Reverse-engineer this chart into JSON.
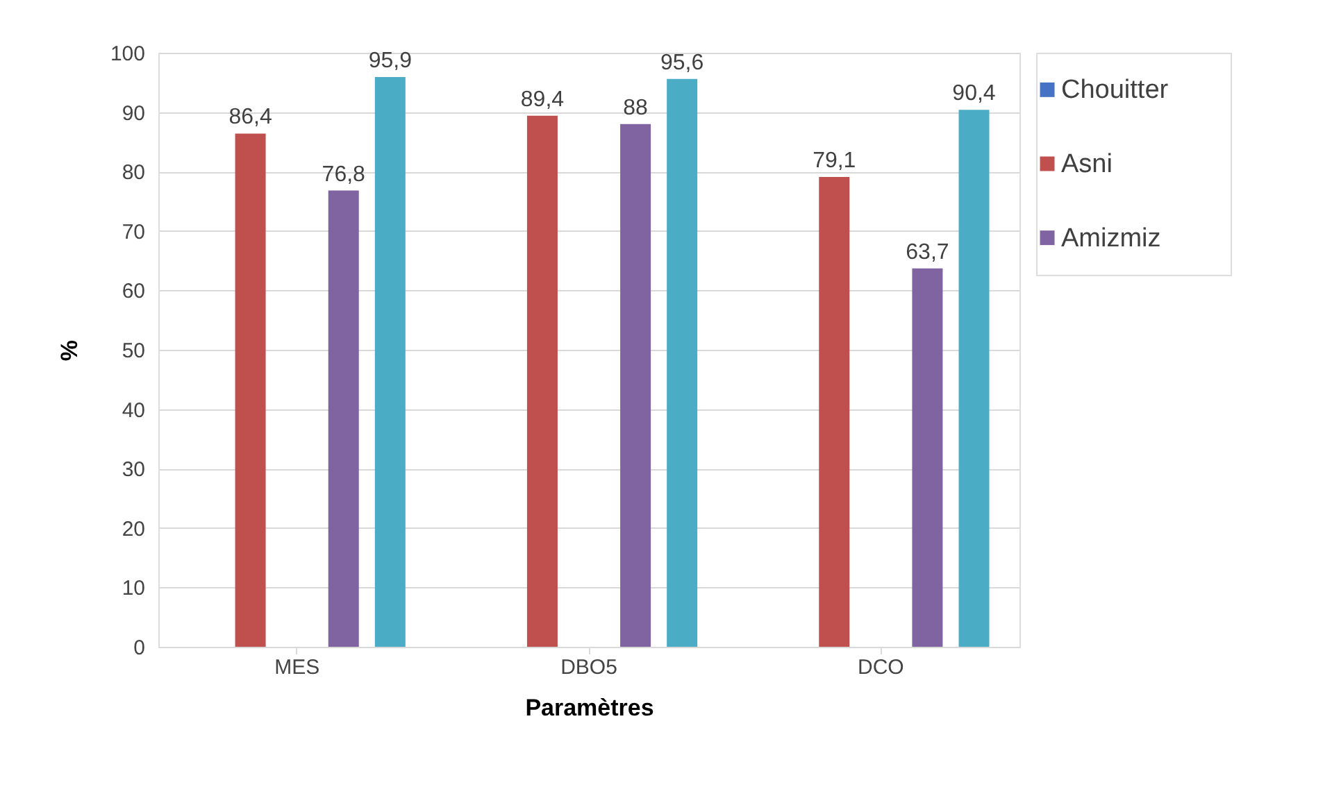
{
  "chart_data": {
    "type": "bar",
    "xlabel": "Paramètres",
    "ylabel": "%",
    "categories": [
      "MES",
      "DBO5",
      "DCO"
    ],
    "series": [
      {
        "name": "Chouitter",
        "color": "#4472c4",
        "values": [
          null,
          null,
          null
        ]
      },
      {
        "name": "Asni",
        "color": "#c0504d",
        "values": [
          86.4,
          89.4,
          79.1
        ],
        "value_labels": [
          "86,4",
          "89,4",
          "79,1"
        ]
      },
      {
        "color": "#9bbb59",
        "values": [
          null,
          null,
          null
        ]
      },
      {
        "name": "Amizmiz",
        "color": "#8064a2",
        "values": [
          76.8,
          88,
          63.7
        ],
        "value_labels": [
          "76,8",
          "88",
          "63,7"
        ]
      },
      {
        "color": "#4bacc6",
        "values": [
          95.9,
          95.6,
          90.4
        ],
        "value_labels": [
          "95,9",
          "95,6",
          "90,4"
        ]
      }
    ],
    "ylim": [
      0,
      100
    ],
    "yticks": [
      0,
      10,
      20,
      30,
      40,
      50,
      60,
      70,
      80,
      90,
      100
    ],
    "grid": "y",
    "legend": "right"
  }
}
